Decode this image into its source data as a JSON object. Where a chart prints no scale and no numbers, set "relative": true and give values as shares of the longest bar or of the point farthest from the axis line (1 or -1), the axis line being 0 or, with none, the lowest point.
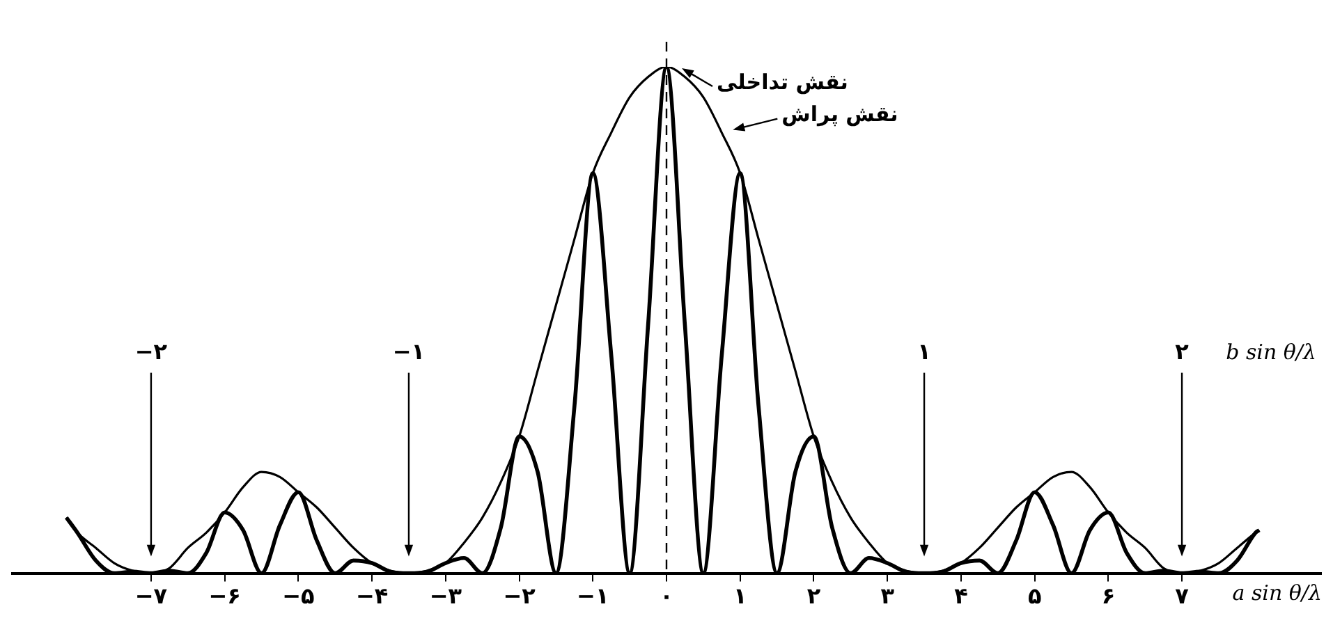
{
  "chart_data": {
    "type": "line",
    "relative": true,
    "xlabel": "a sin θ/λ",
    "xlim": [
      -8.9,
      8.9
    ],
    "xticks": [
      {
        "value": -7,
        "label": "−۷"
      },
      {
        "value": -6,
        "label": "−۶"
      },
      {
        "value": -5,
        "label": "−۵"
      },
      {
        "value": -4,
        "label": "−۴"
      },
      {
        "value": -3,
        "label": "−۳"
      },
      {
        "value": -2,
        "label": "−۲"
      },
      {
        "value": -1,
        "label": "−۱"
      },
      {
        "value": 0,
        "label": "۰"
      },
      {
        "value": 1,
        "label": "۱"
      },
      {
        "value": 2,
        "label": "۲"
      },
      {
        "value": 3,
        "label": "۳"
      },
      {
        "value": 4,
        "label": "۴"
      },
      {
        "value": 5,
        "label": "۵"
      },
      {
        "value": 6,
        "label": "۶"
      },
      {
        "value": 7,
        "label": "۷"
      }
    ],
    "grid": false,
    "legend": "top",
    "marker": "none",
    "line_style": "solid",
    "series": [
      {
        "name": "نقش پراش",
        "color": "#000000",
        "x": [
          -8.15,
          -8,
          -7.75,
          -7.5,
          -7.25,
          -7,
          -6.75,
          -6.5,
          -6.25,
          -6,
          -5.75,
          -5.5,
          -5.25,
          -5,
          -4.75,
          -4.5,
          -4.25,
          -4,
          -3.75,
          -3.5,
          -3.25,
          -3,
          -2.75,
          -2.5,
          -2.25,
          -2,
          -1.75,
          -1.5,
          -1.25,
          -1,
          -0.75,
          -0.5,
          -0.25,
          0,
          0.25,
          0.5,
          0.75,
          1,
          1.25,
          1.5,
          1.75,
          2,
          2.25,
          2.5,
          2.75,
          3,
          3.25,
          3.5,
          3.75,
          4,
          4.25,
          4.5,
          4.75,
          5,
          5.25,
          5.5,
          5.75,
          6,
          6.25,
          6.5,
          6.75,
          7,
          7.25,
          7.5,
          7.75,
          8,
          8.05
        ],
        "values": [
          0.11,
          0.08,
          0.05,
          0.02,
          0.005,
          0,
          0.01,
          0.05,
          0.08,
          0.12,
          0.17,
          0.2,
          0.19,
          0.16,
          0.13,
          0.09,
          0.05,
          0.02,
          0.005,
          0,
          0.005,
          0.02,
          0.06,
          0.11,
          0.18,
          0.27,
          0.4,
          0.53,
          0.66,
          0.79,
          0.87,
          0.94,
          0.98,
          1,
          0.98,
          0.94,
          0.87,
          0.79,
          0.66,
          0.53,
          0.4,
          0.27,
          0.18,
          0.11,
          0.06,
          0.02,
          0.005,
          0,
          0.005,
          0.02,
          0.05,
          0.09,
          0.13,
          0.16,
          0.19,
          0.2,
          0.17,
          0.12,
          0.08,
          0.05,
          0.01,
          0,
          0.005,
          0.02,
          0.05,
          0.08,
          0.085
        ]
      },
      {
        "name": "نقش تداخلی",
        "color": "#000000",
        "x": [
          -8.15,
          -8,
          -7.75,
          -7.5,
          -7.25,
          -7,
          -6.75,
          -6.5,
          -6.25,
          -6,
          -5.75,
          -5.5,
          -5.25,
          -5,
          -4.75,
          -4.5,
          -4.25,
          -4,
          -3.75,
          -3.5,
          -3.25,
          -3,
          -2.75,
          -2.5,
          -2.25,
          -2,
          -1.75,
          -1.5,
          -1.25,
          -1,
          -0.75,
          -0.5,
          -0.25,
          0,
          0.25,
          0.5,
          0.75,
          1,
          1.25,
          1.5,
          1.75,
          2,
          2.25,
          2.5,
          2.75,
          3,
          3.25,
          3.5,
          3.75,
          4,
          4.25,
          4.5,
          4.75,
          5,
          5.25,
          5.5,
          5.75,
          6,
          6.25,
          6.5,
          6.75,
          7,
          7.25,
          7.5,
          7.75,
          8,
          8.05
        ],
        "values": [
          0.11,
          0.08,
          0.025,
          0,
          0.003,
          0,
          0.005,
          0,
          0.04,
          0.12,
          0.085,
          0,
          0.095,
          0.16,
          0.065,
          0,
          0.025,
          0.02,
          0.003,
          0,
          0.003,
          0.02,
          0.03,
          0,
          0.09,
          0.27,
          0.2,
          0,
          0.33,
          0.79,
          0.43,
          0,
          0.49,
          1,
          0.49,
          0,
          0.43,
          0.79,
          0.33,
          0,
          0.2,
          0.27,
          0.09,
          0,
          0.03,
          0.02,
          0.003,
          0,
          0.003,
          0.02,
          0.025,
          0,
          0.065,
          0.16,
          0.095,
          0,
          0.085,
          0.12,
          0.04,
          0,
          0.005,
          0,
          0.003,
          0,
          0.025,
          0.08,
          0.085
        ]
      }
    ],
    "ref_lines": [
      {
        "axis": "x",
        "value": 0,
        "line_style": "dashed"
      }
    ],
    "x2label": "b sin θ/λ",
    "x2lim": [
      -2.543,
      2.543
    ],
    "x2ticks": [
      {
        "value": -2,
        "label": "−۲"
      },
      {
        "value": -1,
        "label": "−۱"
      },
      {
        "value": 1,
        "label": "۱"
      },
      {
        "value": 2,
        "label": "۲"
      }
    ]
  }
}
